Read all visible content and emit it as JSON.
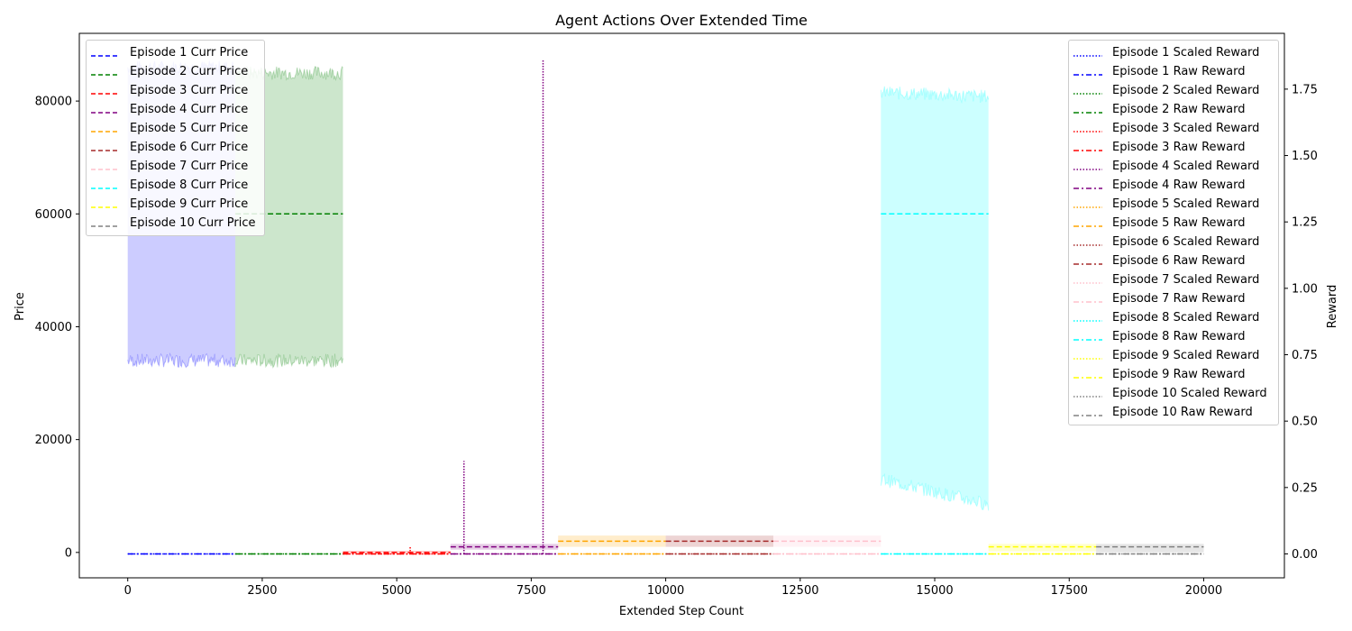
{
  "chart_data": {
    "type": "line",
    "title": "Agent Actions Over Extended Time",
    "xlabel": "Extended Step Count",
    "ylabel": "Price",
    "y2label": "Reward",
    "xlim": [
      -900,
      21500
    ],
    "ylim": [
      -4500,
      92000
    ],
    "y2lim": [
      -0.09,
      1.96
    ],
    "x_ticks": [
      0,
      2500,
      5000,
      7500,
      10000,
      12500,
      15000,
      17500,
      20000
    ],
    "y_ticks": [
      0,
      20000,
      40000,
      60000,
      80000
    ],
    "y2_ticks": [
      0.0,
      0.25,
      0.5,
      0.75,
      1.0,
      1.25,
      1.5,
      1.75
    ],
    "grid": false,
    "legend_left_position": "upper left",
    "legend_right_position": "upper right",
    "episodes": [
      {
        "id": 1,
        "color": "#0000ff",
        "x_start": 0,
        "x_end": 2000,
        "curr_price": 0,
        "band_low": 34000,
        "band_high": 86000,
        "price_line_value": 60000,
        "price_line_visible": false,
        "scaled_reward": 0.0,
        "raw_reward": 0.0,
        "price_label": "Episode 1 Curr Price",
        "scaled_label": "Episode 1 Scaled Reward",
        "raw_label": "Episode 1 Raw Reward"
      },
      {
        "id": 2,
        "color": "#008000",
        "x_start": 2000,
        "x_end": 4000,
        "curr_price": 60000,
        "band_low": 34000,
        "band_high": 85000,
        "price_line_value": 60000,
        "price_line_visible": true,
        "scaled_reward": 0.0,
        "raw_reward": 0.0,
        "price_label": "Episode 2 Curr Price",
        "scaled_label": "Episode 2 Scaled Reward",
        "raw_label": "Episode 2 Raw Reward"
      },
      {
        "id": 3,
        "color": "#ff0000",
        "x_start": 4000,
        "x_end": 6000,
        "curr_price": 0,
        "band_low": 0,
        "band_high": 300,
        "price_line_value": 0,
        "price_line_visible": true,
        "scaled_reward": 0.0,
        "raw_reward": 0.0,
        "spike_x": 5250,
        "spike_value": 0.03,
        "price_label": "Episode 3 Curr Price",
        "scaled_label": "Episode 3 Scaled Reward",
        "raw_label": "Episode 3 Raw Reward"
      },
      {
        "id": 4,
        "color": "#800080",
        "x_start": 6000,
        "x_end": 8000,
        "curr_price": 1000,
        "band_low": 500,
        "band_high": 1500,
        "price_line_value": 1000,
        "price_line_visible": true,
        "scaled_reward": 0.0,
        "raw_reward": 0.0,
        "spikes": [
          {
            "x": 6250,
            "value": 0.35
          },
          {
            "x": 7720,
            "value": 1.86
          }
        ],
        "price_label": "Episode 4 Curr Price",
        "scaled_label": "Episode 4 Scaled Reward",
        "raw_label": "Episode 4 Raw Reward"
      },
      {
        "id": 5,
        "color": "#ffa500",
        "x_start": 8000,
        "x_end": 10000,
        "curr_price": 2000,
        "band_low": 1000,
        "band_high": 3000,
        "price_line_value": 2000,
        "price_line_visible": true,
        "scaled_reward": 0.0,
        "raw_reward": 0.0,
        "price_label": "Episode 5 Curr Price",
        "scaled_label": "Episode 5 Scaled Reward",
        "raw_label": "Episode 5 Raw Reward"
      },
      {
        "id": 6,
        "color": "#a52a2a",
        "x_start": 10000,
        "x_end": 12000,
        "curr_price": 2000,
        "band_low": 1000,
        "band_high": 3000,
        "price_line_value": 2000,
        "price_line_visible": true,
        "scaled_reward": 0.0,
        "raw_reward": 0.0,
        "price_label": "Episode 6 Curr Price",
        "scaled_label": "Episode 6 Scaled Reward",
        "raw_label": "Episode 6 Raw Reward"
      },
      {
        "id": 7,
        "color": "#ffc0cb",
        "x_start": 12000,
        "x_end": 14000,
        "curr_price": 2000,
        "band_low": 1000,
        "band_high": 3000,
        "price_line_value": 2000,
        "price_line_visible": true,
        "scaled_reward": 0.0,
        "raw_reward": 0.0,
        "price_label": "Episode 7 Curr Price",
        "scaled_label": "Episode 7 Scaled Reward",
        "raw_label": "Episode 7 Raw Reward"
      },
      {
        "id": 8,
        "color": "#00ffff",
        "x_start": 14000,
        "x_end": 16000,
        "curr_price": 60000,
        "band_low_start": 13000,
        "band_low_end": 8500,
        "band_high_start": 81500,
        "band_high_end": 80800,
        "price_line_value": 60000,
        "price_line_visible": true,
        "scaled_reward": 0.0,
        "raw_reward": 0.0,
        "price_label": "Episode 8 Curr Price",
        "scaled_label": "Episode 8 Scaled Reward",
        "raw_label": "Episode 8 Raw Reward"
      },
      {
        "id": 9,
        "color": "#ffff00",
        "x_start": 16000,
        "x_end": 18000,
        "curr_price": 1000,
        "band_low": 200,
        "band_high": 1500,
        "price_line_value": 1000,
        "price_line_visible": true,
        "scaled_reward": 0.0,
        "raw_reward": 0.0,
        "price_label": "Episode 9 Curr Price",
        "scaled_label": "Episode 9 Scaled Reward",
        "raw_label": "Episode 9 Raw Reward"
      },
      {
        "id": 10,
        "color": "#808080",
        "x_start": 18000,
        "x_end": 20000,
        "curr_price": 1000,
        "band_low": 0,
        "band_high": 1500,
        "price_line_value": 1000,
        "price_line_visible": true,
        "scaled_reward": 0.0,
        "raw_reward": 0.0,
        "price_label": "Episode 10 Curr Price",
        "scaled_label": "Episode 10 Scaled Reward",
        "raw_label": "Episode 10 Raw Reward"
      }
    ]
  }
}
